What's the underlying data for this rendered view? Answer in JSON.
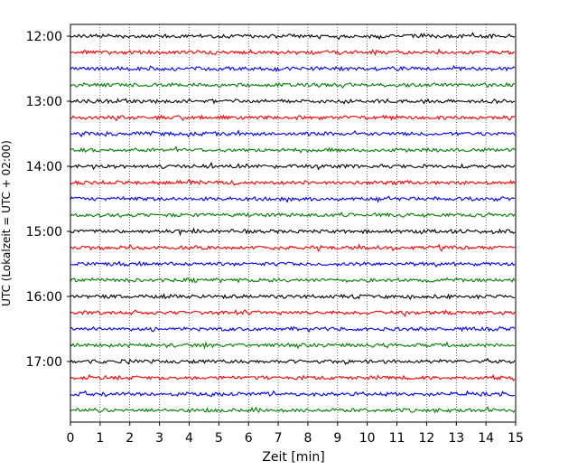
{
  "chart_data": {
    "type": "line",
    "title": "",
    "xlabel": "Zeit  [min]",
    "ylabel": "UTC (Lokalzeit = UTC + 02:00)",
    "xlim": [
      0,
      15
    ],
    "x_ticks": [
      "0",
      "1",
      "2",
      "3",
      "4",
      "5",
      "6",
      "7",
      "8",
      "9",
      "10",
      "11",
      "12",
      "13",
      "14",
      "15"
    ],
    "y_tick_labels": [
      "12:00",
      "13:00",
      "14:00",
      "15:00",
      "16:00",
      "17:00"
    ],
    "grid": "vertical dotted lines at each minute",
    "trace_colors": [
      "#000000",
      "#ff0000",
      "#0000ff",
      "#008000"
    ],
    "series": [
      {
        "start": "12:00",
        "color": "#000000"
      },
      {
        "start": "12:15",
        "color": "#ff0000"
      },
      {
        "start": "12:30",
        "color": "#0000ff"
      },
      {
        "start": "12:45",
        "color": "#008000"
      },
      {
        "start": "13:00",
        "color": "#000000"
      },
      {
        "start": "13:15",
        "color": "#ff0000"
      },
      {
        "start": "13:30",
        "color": "#0000ff"
      },
      {
        "start": "13:45",
        "color": "#008000"
      },
      {
        "start": "14:00",
        "color": "#000000"
      },
      {
        "start": "14:15",
        "color": "#ff0000"
      },
      {
        "start": "14:30",
        "color": "#0000ff"
      },
      {
        "start": "14:45",
        "color": "#008000"
      },
      {
        "start": "15:00",
        "color": "#000000"
      },
      {
        "start": "15:15",
        "color": "#ff0000"
      },
      {
        "start": "15:30",
        "color": "#0000ff"
      },
      {
        "start": "15:45",
        "color": "#008000"
      },
      {
        "start": "16:00",
        "color": "#000000"
      },
      {
        "start": "16:15",
        "color": "#ff0000"
      },
      {
        "start": "16:30",
        "color": "#0000ff"
      },
      {
        "start": "16:45",
        "color": "#008000"
      },
      {
        "start": "17:00",
        "color": "#000000"
      },
      {
        "start": "17:15",
        "color": "#ff0000"
      },
      {
        "start": "17:30",
        "color": "#0000ff"
      },
      {
        "start": "17:45",
        "color": "#008000"
      }
    ]
  }
}
